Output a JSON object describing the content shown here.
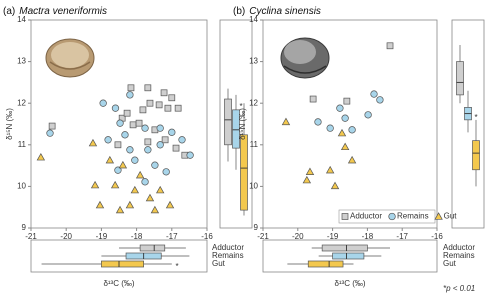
{
  "chart_data": [
    {
      "type": "scatter",
      "panel_label": "(a)",
      "title": "Mactra veneriformis",
      "xlabel": "δ¹³C (‰)",
      "ylabel": "δ¹⁵N (‰)",
      "xlim": [
        -21,
        -16
      ],
      "ylim": [
        9,
        14
      ],
      "xticks": [
        -21,
        -20,
        -19,
        -18,
        -17,
        -16
      ],
      "yticks": [
        9,
        10,
        11,
        12,
        13,
        14
      ],
      "grid": false,
      "annotations": [
        "*",
        "*"
      ],
      "series": [
        {
          "name": "Adductor",
          "color": "#cfcfcf",
          "marker": "square",
          "x": [
            -20.4,
            -18.41,
            -18.16,
            -17.68,
            -17.22,
            -17.0,
            -17.62,
            -17.36,
            -17.11,
            -17.82,
            -16.82,
            -18.27,
            -18.1,
            -17.48,
            -17.19,
            -16.63,
            -16.88,
            -17.93,
            -18.53,
            -17.68
          ],
          "y": [
            11.45,
            11.64,
            12.37,
            12.37,
            12.25,
            12.13,
            12.0,
            11.96,
            11.88,
            11.84,
            11.88,
            11.76,
            11.48,
            11.36,
            11.12,
            10.75,
            10.92,
            11.52,
            11.0,
            11.07
          ],
          "box_x": [
            -18.5,
            -17.9,
            -17.5,
            -17.2,
            -16.6
          ],
          "box_y": [
            10.6,
            11.0,
            11.6,
            12.1,
            12.35
          ]
        },
        {
          "name": "Remains",
          "color": "#a8d5ea",
          "marker": "circle",
          "x": [
            -20.46,
            -18.95,
            -18.6,
            -18.47,
            -18.33,
            -18.81,
            -18.19,
            -17.76,
            -17.33,
            -17.0,
            -17.68,
            -17.33,
            -18.05,
            -17.48,
            -17.16,
            -16.71,
            -16.48,
            -17.76,
            -18.53,
            -18.19
          ],
          "y": [
            11.28,
            12.0,
            11.88,
            11.52,
            11.24,
            11.12,
            10.88,
            11.4,
            11.4,
            11.3,
            10.88,
            11.0,
            10.63,
            10.51,
            10.35,
            11.12,
            10.75,
            10.11,
            10.39,
            12.2
          ],
          "box_x": [
            -19.0,
            -18.3,
            -17.8,
            -17.3,
            -16.5
          ],
          "box_y": [
            10.4,
            10.92,
            11.36,
            11.84,
            12.2
          ]
        },
        {
          "name": "Gut",
          "color": "#f3c84e",
          "marker": "triangle",
          "x": [
            -20.72,
            -19.24,
            -19.18,
            -19.04,
            -18.61,
            -18.39,
            -18.05,
            -17.62,
            -17.05,
            -17.48,
            -18.19,
            -18.76,
            -17.9,
            -17.33,
            -18.47
          ],
          "y": [
            10.7,
            11.04,
            10.03,
            9.55,
            10.03,
            10.51,
            9.91,
            9.72,
            9.55,
            9.43,
            9.55,
            10.63,
            10.27,
            9.91,
            9.43
          ],
          "box_x": [
            -20.7,
            -19.0,
            -18.5,
            -17.8,
            -17.0
          ],
          "box_y": [
            9.3,
            9.43,
            10.44,
            11.24,
            12.0
          ]
        }
      ]
    },
    {
      "type": "scatter",
      "panel_label": "(b)",
      "title": "Cyclina sinensis",
      "xlabel": "δ¹³C (‰)",
      "ylabel": "δ¹⁵N (‰)",
      "xlim": [
        -21,
        -16
      ],
      "ylim": [
        9,
        14
      ],
      "xticks": [
        -21,
        -20,
        -19,
        -18,
        -17,
        -16
      ],
      "yticks": [
        9,
        10,
        11,
        12,
        13,
        14
      ],
      "grid": false,
      "legend": "lower right",
      "annotations": [
        "*"
      ],
      "note": "*p < 0.01",
      "series": [
        {
          "name": "Adductor",
          "color": "#cfcfcf",
          "marker": "square",
          "x": [
            -19.56,
            -18.59,
            -17.35
          ],
          "y": [
            12.1,
            12.05,
            13.38
          ],
          "box_x": [
            -19.6,
            -19.3,
            -18.6,
            -18.0,
            -17.35
          ],
          "box_y": [
            12.0,
            12.2,
            12.5,
            13.0,
            13.4
          ]
        },
        {
          "name": "Remains",
          "color": "#a8d5ea",
          "marker": "circle",
          "x": [
            -19.42,
            -19.07,
            -18.79,
            -18.64,
            -18.44,
            -17.98,
            -17.81,
            -17.64
          ],
          "y": [
            11.55,
            11.4,
            11.88,
            11.64,
            11.36,
            11.72,
            12.22,
            12.08
          ],
          "box_x": [
            -19.4,
            -19.0,
            -18.6,
            -18.1,
            -17.6
          ],
          "box_y": [
            11.3,
            11.6,
            11.75,
            11.9,
            12.3
          ]
        },
        {
          "name": "Gut",
          "color": "#f3c84e",
          "marker": "triangle",
          "x": [
            -20.34,
            -19.65,
            -19.07,
            -18.93,
            -18.73,
            -18.64,
            -18.44,
            -19.74
          ],
          "y": [
            11.55,
            10.35,
            10.39,
            10.01,
            11.28,
            10.95,
            10.63,
            10.15
          ],
          "box_x": [
            -20.3,
            -19.7,
            -19.1,
            -18.7,
            -18.4
          ],
          "box_y": [
            10.0,
            10.4,
            10.8,
            11.1,
            11.6
          ]
        }
      ]
    }
  ]
}
